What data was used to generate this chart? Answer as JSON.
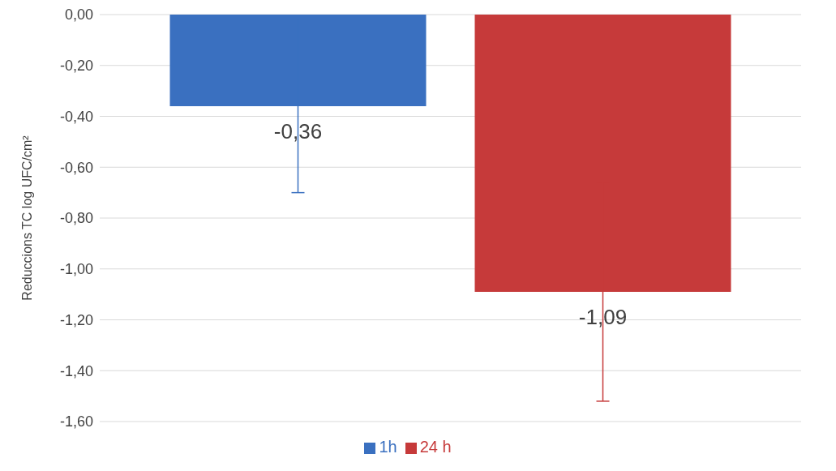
{
  "chart_data": {
    "type": "bar",
    "ylabel": "Reduccions TC  log UFC/cm²",
    "categories": [
      null
    ],
    "series": [
      {
        "name": "1h",
        "color": "#3a70c0",
        "values": [
          -0.36
        ],
        "errors": [
          0.34
        ],
        "value_labels": [
          "-0,36"
        ]
      },
      {
        "name": "24 h",
        "color": "#c63a3a",
        "values": [
          -1.09
        ],
        "errors": [
          0.43
        ],
        "value_labels": [
          "-1,09"
        ]
      }
    ],
    "ylim": [
      -1.6,
      0
    ],
    "yticks": [
      {
        "value": 0,
        "label": "0,00"
      },
      {
        "value": -0.2,
        "label": "-0,20"
      },
      {
        "value": -0.4,
        "label": "-0,40"
      },
      {
        "value": -0.6,
        "label": "-0,60"
      },
      {
        "value": -0.8,
        "label": "-0,80"
      },
      {
        "value": -1,
        "label": "-1,00"
      },
      {
        "value": -1.2,
        "label": "-1,20"
      },
      {
        "value": -1.4,
        "label": "-1,40"
      },
      {
        "value": -1.6,
        "label": "-1,60"
      }
    ],
    "grid": "y",
    "legend": "bottom"
  }
}
